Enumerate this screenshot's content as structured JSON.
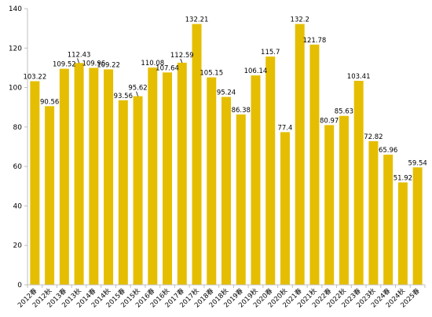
{
  "chart_data": {
    "type": "bar",
    "title": "",
    "xlabel": "",
    "ylabel": "",
    "ylim": [
      0,
      140
    ],
    "yticks": [
      0,
      20,
      40,
      60,
      80,
      100,
      120,
      140
    ],
    "grid": false,
    "legend": "none",
    "bar_color": "#E5BE01",
    "categories": [
      "2012春",
      "2012秋",
      "2013春",
      "2013秋",
      "2014春",
      "2014秋",
      "2015春",
      "2015秋",
      "2016春",
      "2016秋",
      "2017春",
      "2017秋",
      "2018春",
      "2018秋",
      "2019春",
      "2019秋",
      "2020春",
      "2020秋",
      "2021春",
      "2021秋",
      "2022春",
      "2022秋",
      "2023春",
      "2023秋",
      "2024春",
      "2024秋",
      "2025春"
    ],
    "values": [
      103.22,
      90.56,
      109.52,
      112.43,
      109.96,
      109.22,
      93.56,
      95.62,
      110.08,
      107.64,
      112.59,
      132.21,
      105.15,
      95.24,
      86.38,
      106.14,
      115.7,
      77.4,
      132.2,
      121.78,
      80.97,
      85.63,
      103.41,
      72.82,
      65.96,
      51.92,
      59.54
    ],
    "data_labels": [
      "103.22",
      "90.56",
      "109.52",
      "112.43",
      "109.96",
      "109.22",
      "93.56",
      "95.62",
      "110.08",
      "107.64",
      "112.59",
      "132.21",
      "105.15",
      "95.24",
      "86.38",
      "106.14",
      "115.7",
      "77.4",
      "132.2",
      "121.78",
      "80.97",
      "85.63",
      "103.41",
      "72.82",
      "65.96",
      "51.92",
      "59.54"
    ]
  }
}
